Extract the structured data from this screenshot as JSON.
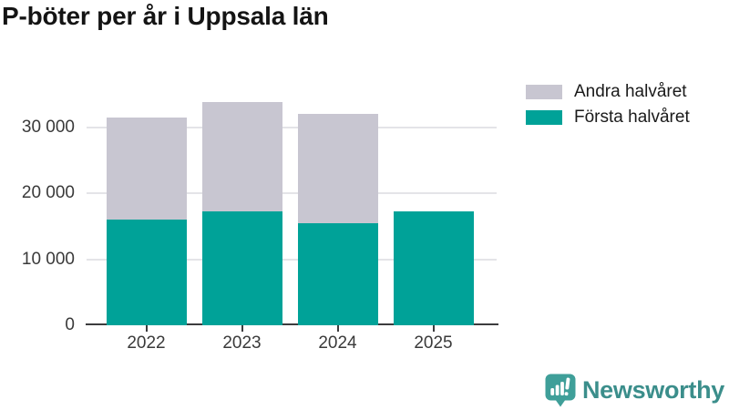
{
  "header": {
    "title": "P-böter per år i Uppsala län"
  },
  "legend": {
    "items": [
      {
        "label": "Andra halvåret",
        "color": "#c8c6d1"
      },
      {
        "label": "Första halvåret",
        "color": "#00a298"
      }
    ]
  },
  "footer": {
    "brand": "Newsworthy",
    "icon": "newsworthy-speech-bubble-chart-icon",
    "icon_color": "#3f9f99",
    "text_color": "#3b8e8b"
  },
  "colors": {
    "first_half": "#00a298",
    "second_half": "#c8c6d1",
    "grid": "#e4e4e8",
    "axis": "#3c3c3e",
    "title_text": "#141414",
    "tick_text": "#3a3a3a"
  },
  "chart_data": {
    "type": "bar",
    "stacked": true,
    "title": "P-böter per år i Uppsala län",
    "xlabel": "",
    "ylabel": "",
    "categories": [
      "2022",
      "2023",
      "2024",
      "2025"
    ],
    "series": [
      {
        "name": "Första halvåret",
        "color": "#00a298",
        "values": [
          16000,
          17300,
          15500,
          17300
        ]
      },
      {
        "name": "Andra halvåret",
        "color": "#c8c6d1",
        "values": [
          15500,
          16600,
          16500,
          0
        ]
      }
    ],
    "totals": [
      31500,
      33900,
      32000,
      17300
    ],
    "ylim": [
      0,
      35500
    ],
    "yticks": [
      0,
      10000,
      20000,
      30000
    ],
    "ytick_labels": [
      "0",
      "10 000",
      "20 000",
      "30 000"
    ],
    "grid": "horizontal",
    "legend_position": "top-right",
    "legend_order": [
      "Andra halvåret",
      "Första halvåret"
    ]
  }
}
